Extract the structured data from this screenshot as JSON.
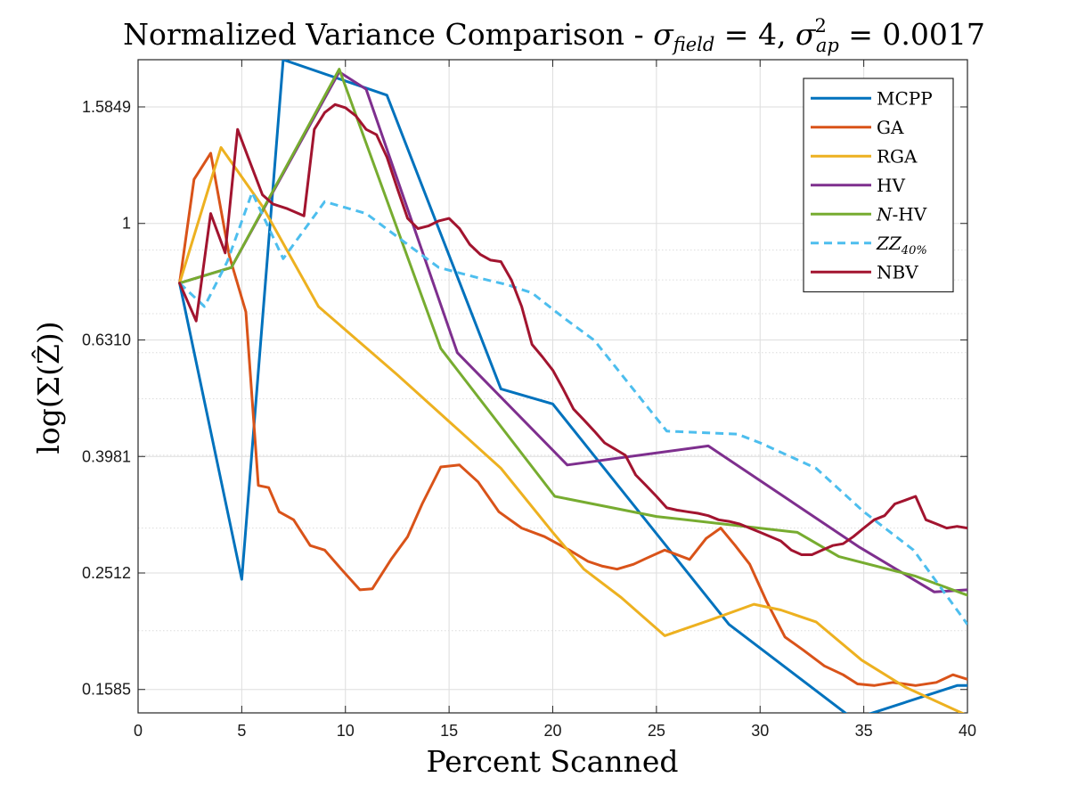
{
  "chart_data": {
    "type": "line",
    "title": "Normalized Variance Comparison - σ_field = 4, σ²_ap = 0.0017",
    "title_parts": {
      "prefix": "Normalized Variance Comparison - ",
      "sigma1": "σ",
      "sub1": "field",
      "eq1": " = 4, ",
      "sigma2": "σ",
      "sup2": "2",
      "sub2": "ap",
      "eq2": " = 0.0017"
    },
    "xlabel": "Percent Scanned",
    "ylabel": "log(Σ(Ẑ))",
    "xlim": [
      0,
      40
    ],
    "ylim": [
      0.1445,
      1.91
    ],
    "y_scale": "log",
    "xticks": [
      0,
      5,
      10,
      15,
      20,
      25,
      30,
      35,
      40
    ],
    "xtick_labels": [
      "0",
      "5",
      "10",
      "15",
      "20",
      "25",
      "30",
      "35",
      "40"
    ],
    "yticks": [
      0.1585,
      0.2512,
      0.3981,
      0.631,
      1,
      1.5849
    ],
    "ytick_labels": [
      "0.1585",
      "0.2512",
      "0.3981",
      "0.6310",
      "1",
      "1.5849"
    ],
    "grid": true,
    "legend_position": "top-right",
    "series": [
      {
        "name": "MCPP",
        "color": "#0072BD",
        "dash": "solid",
        "x": [
          2,
          5,
          7,
          12,
          17.5,
          20,
          28.5,
          34.5,
          39.5,
          40
        ],
        "y": [
          0.79,
          0.245,
          1.91,
          1.66,
          0.52,
          0.49,
          0.205,
          0.141,
          0.161,
          0.161
        ]
      },
      {
        "name": "GA",
        "color": "#D95319",
        "dash": "solid",
        "x": [
          2,
          2.7,
          3.5,
          4.4,
          5.2,
          5.8,
          6.3,
          6.8,
          7.5,
          8.3,
          9,
          9.8,
          10.7,
          11.3,
          12.2,
          13,
          13.7,
          14.6,
          15.5,
          16.4,
          17.4,
          18.5,
          19.6,
          20.8,
          21.7,
          22.4,
          23.1,
          23.9,
          24.5,
          25.4,
          26.6,
          27.4,
          28.1,
          28.8,
          29.5,
          30.3,
          31.2,
          32.1,
          33.1,
          34,
          34.7,
          35.5,
          36.4,
          37.5,
          38.5,
          39.3,
          40
        ],
        "y": [
          0.79,
          1.19,
          1.32,
          0.88,
          0.705,
          0.355,
          0.352,
          0.32,
          0.31,
          0.28,
          0.275,
          0.255,
          0.235,
          0.236,
          0.265,
          0.29,
          0.33,
          0.382,
          0.385,
          0.36,
          0.32,
          0.3,
          0.29,
          0.275,
          0.263,
          0.258,
          0.255,
          0.26,
          0.266,
          0.275,
          0.265,
          0.288,
          0.3,
          0.28,
          0.26,
          0.225,
          0.195,
          0.185,
          0.174,
          0.168,
          0.162,
          0.161,
          0.163,
          0.161,
          0.163,
          0.168,
          0.165
        ]
      },
      {
        "name": "RGA",
        "color": "#EDB120",
        "dash": "solid",
        "x": [
          2,
          4,
          6,
          8.7,
          12.5,
          17.5,
          20,
          21.5,
          23.3,
          25.4,
          27.5,
          29.7,
          31,
          32.7,
          34.9,
          37,
          40
        ],
        "y": [
          0.79,
          1.35,
          1.07,
          0.72,
          0.55,
          0.38,
          0.295,
          0.255,
          0.228,
          0.196,
          0.208,
          0.222,
          0.217,
          0.207,
          0.178,
          0.16,
          0.143
        ]
      },
      {
        "name": "HV",
        "color": "#7E2F8E",
        "dash": "solid",
        "x": [
          2,
          4.5,
          9.7,
          11,
          15.4,
          20.7,
          27.5,
          34.8,
          38.4,
          40
        ],
        "y": [
          0.79,
          0.84,
          1.82,
          1.7,
          0.6,
          0.385,
          0.415,
          0.278,
          0.233,
          0.235
        ]
      },
      {
        "name": "N-HV",
        "color": "#77AC30",
        "dash": "solid",
        "x": [
          2,
          4.5,
          9.7,
          14.6,
          20.1,
          25,
          31.8,
          33.8,
          37.5,
          40
        ],
        "y": [
          0.79,
          0.84,
          1.84,
          0.61,
          0.34,
          0.314,
          0.295,
          0.268,
          0.248,
          0.23
        ]
      },
      {
        "name": "ZZ_40%",
        "color": "#4DBEEE",
        "dash": "dashed",
        "x": [
          2,
          3.2,
          4.3,
          5.5,
          7,
          9,
          11,
          13,
          14.5,
          16.2,
          17.8,
          19,
          20.5,
          22,
          23.5,
          25.5,
          28.9,
          30,
          32.7,
          35,
          37.4,
          40
        ],
        "y": [
          0.79,
          0.72,
          0.86,
          1.13,
          0.87,
          1.09,
          1.04,
          0.92,
          0.84,
          0.81,
          0.785,
          0.76,
          0.69,
          0.63,
          0.54,
          0.44,
          0.435,
          0.42,
          0.38,
          0.32,
          0.275,
          0.205
        ]
      },
      {
        "name": "NBV",
        "color": "#A2142F",
        "dash": "solid",
        "x": [
          2,
          2.8,
          3.5,
          4.2,
          4.8,
          5.3,
          6,
          6.5,
          7.2,
          8,
          8.5,
          9,
          9.5,
          10,
          10.5,
          11,
          11.5,
          12,
          12.5,
          13,
          13.5,
          14,
          14.5,
          15,
          15.5,
          16,
          16.5,
          17,
          17.5,
          18,
          18.5,
          19,
          19.5,
          20,
          20.5,
          21,
          21.5,
          22,
          22.5,
          23,
          23.5,
          24,
          24.5,
          25,
          25.5,
          26,
          26.5,
          27,
          27.5,
          28,
          28.5,
          29,
          29.5,
          30,
          30.5,
          31,
          31.5,
          32,
          32.5,
          33,
          33.5,
          34,
          34.5,
          35,
          35.5,
          36,
          36.5,
          37,
          37.5,
          38,
          38.5,
          39,
          39.5,
          40
        ],
        "y": [
          0.79,
          0.68,
          1.04,
          0.89,
          1.45,
          1.3,
          1.12,
          1.08,
          1.06,
          1.03,
          1.45,
          1.55,
          1.6,
          1.58,
          1.53,
          1.45,
          1.42,
          1.3,
          1.15,
          1.02,
          0.98,
          0.99,
          1.01,
          1.02,
          0.98,
          0.92,
          0.885,
          0.865,
          0.86,
          0.8,
          0.72,
          0.62,
          0.59,
          0.56,
          0.52,
          0.48,
          0.46,
          0.44,
          0.42,
          0.41,
          0.4,
          0.37,
          0.355,
          0.34,
          0.325,
          0.322,
          0.32,
          0.318,
          0.315,
          0.31,
          0.308,
          0.305,
          0.3,
          0.295,
          0.29,
          0.285,
          0.275,
          0.27,
          0.27,
          0.275,
          0.28,
          0.282,
          0.29,
          0.3,
          0.31,
          0.315,
          0.33,
          0.335,
          0.34,
          0.31,
          0.305,
          0.3,
          0.302,
          0.3
        ]
      }
    ]
  },
  "legend": {
    "entries": [
      {
        "plain": "MCPP"
      },
      {
        "plain": "GA"
      },
      {
        "plain": "RGA"
      },
      {
        "plain": "HV"
      },
      {
        "italic": "N",
        "plain": "-HV"
      },
      {
        "italic": "ZZ",
        "sub": "40%"
      },
      {
        "plain": "NBV"
      }
    ]
  }
}
